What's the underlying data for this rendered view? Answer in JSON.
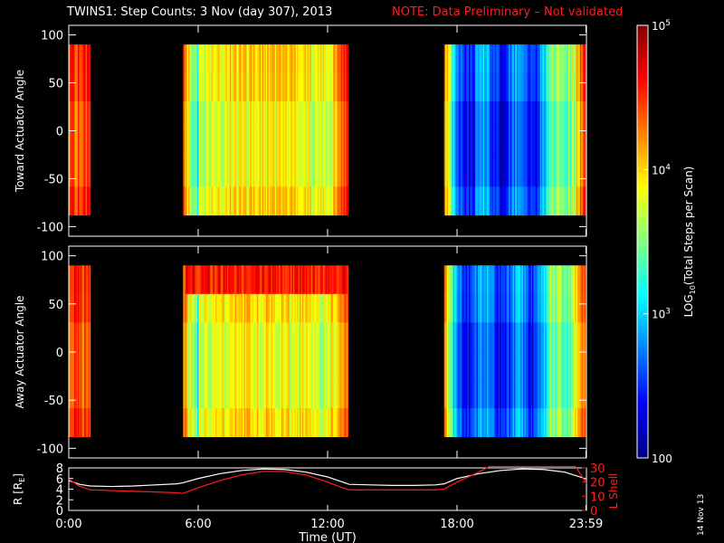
{
  "title": "TWINS1: Step Counts:  3 Nov (day 307), 2013",
  "note": "NOTE: Data Preliminary – Not validated",
  "stamp": "14 Nov 13",
  "chart_data": [
    {
      "type": "heatmap",
      "ylabel": "Toward Actuator Angle",
      "ylim": [
        -110,
        110
      ],
      "yticks": [
        100,
        50,
        0,
        -50,
        -100
      ],
      "data_angle_range": [
        -88,
        90
      ],
      "data_intervals_hours": [
        [
          0.0,
          1.0
        ],
        [
          5.3,
          12.95
        ],
        [
          17.4,
          23.98
        ]
      ],
      "minor_color_note": "log10 of total steps per scan"
    },
    {
      "type": "heatmap",
      "ylabel": "Away Actuator Angle",
      "ylim": [
        -110,
        110
      ],
      "yticks": [
        100,
        50,
        0,
        -50,
        -100
      ],
      "data_angle_range": [
        -88,
        90
      ],
      "data_intervals_hours": [
        [
          0.0,
          1.0
        ],
        [
          5.3,
          12.95
        ],
        [
          17.4,
          23.98
        ]
      ]
    },
    {
      "type": "line",
      "ylabel_left": "R [R",
      "ylabel_left_sub": "E",
      "ylabel_left_end": "]",
      "ylabel_right": "L Shell",
      "ylim_left": [
        0,
        8
      ],
      "yticks_left": [
        8,
        6,
        4,
        2,
        0
      ],
      "ylim_right": [
        0,
        30
      ],
      "yticks_right": [
        30,
        20,
        10,
        0
      ],
      "xlabel": "Time (UT)",
      "xlim": [
        0,
        24
      ],
      "xtick_labels": [
        "0:00",
        "6:00",
        "12:00",
        "18:00",
        "23:59"
      ],
      "xticks": [
        0,
        6,
        12,
        18,
        23.98
      ],
      "series": [
        {
          "color": "#ffffff",
          "x": [
            0,
            0.5,
            1,
            2,
            3,
            4,
            5,
            5.3,
            6,
            7,
            8,
            9,
            10,
            11,
            12,
            12.5,
            13,
            14,
            15,
            16,
            17,
            17.4,
            18,
            19,
            20,
            21,
            22,
            23,
            24
          ],
          "y": [
            5.6,
            4.9,
            4.6,
            4.5,
            4.6,
            4.8,
            5.0,
            5.2,
            6.0,
            6.9,
            7.5,
            7.8,
            7.7,
            7.2,
            6.3,
            5.6,
            4.9,
            4.8,
            4.7,
            4.7,
            4.8,
            5.0,
            6.0,
            6.9,
            7.5,
            7.8,
            7.7,
            7.2,
            5.9
          ]
        },
        {
          "color": "#ff1e1e",
          "x": [
            0,
            0.5,
            1,
            2,
            3,
            4,
            5,
            5.3,
            6,
            7,
            8,
            9,
            10,
            11,
            12,
            12.5,
            13,
            14,
            15,
            16,
            17,
            17.4,
            18,
            19,
            19.5,
            23.5,
            24
          ],
          "y": [
            22,
            17,
            14.5,
            14,
            13.5,
            13,
            12.5,
            12,
            16,
            21,
            25,
            27.5,
            27.5,
            25,
            20,
            17,
            14.5,
            14.5,
            14.5,
            14.5,
            14.5,
            15,
            20,
            27,
            31,
            31,
            19
          ]
        }
      ]
    }
  ],
  "colorbar": {
    "label_pre": "LOG",
    "label_sub": "10",
    "label_post": "(Total Steps per Scan)",
    "scale": "log",
    "range": [
      100,
      100000
    ],
    "ticks": [
      {
        "value": 100000,
        "base": "10",
        "exp": "5"
      },
      {
        "value": 10000,
        "base": "10",
        "exp": "4"
      },
      {
        "value": 1000,
        "base": "10",
        "exp": "3"
      },
      {
        "value": 100,
        "base": "100",
        "exp": ""
      }
    ],
    "colors": [
      "#000080",
      "#0000ff",
      "#0080ff",
      "#00ffff",
      "#80ff80",
      "#ffff00",
      "#ff8000",
      "#ff0000",
      "#800000"
    ]
  }
}
